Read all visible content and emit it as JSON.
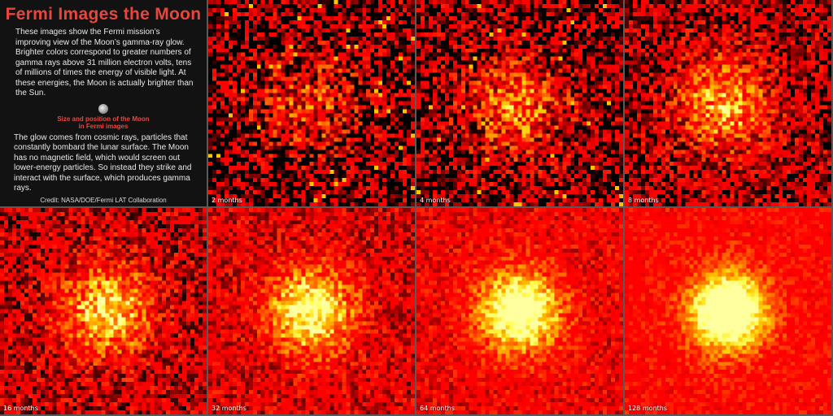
{
  "info": {
    "title": "Fermi Images the Moon",
    "paragraph1": "These images show the Fermi mission’s improving view of the Moon’s gamma-ray glow. Brighter colors correspond to greater numbers of gamma rays above 31 million electron volts, tens of millions of times the energy of visible light. At these energies, the Moon is actually brighter than the Sun.",
    "moon_caption_line1": "Size and position of the Moon",
    "moon_caption_line2": "in Fermi images",
    "paragraph2": "The glow comes from cosmic rays, particles that constantly bombard the lunar surface. The Moon has no magnetic field, which would screen out lower-energy particles. So instead they strike and interact with the surface, which produces gamma rays.",
    "credit": "Credit: NASA/DOE/Fermi LAT Collaboration"
  },
  "panels": [
    {
      "label": "2 months"
    },
    {
      "label": "4 months"
    },
    {
      "label": "8 months"
    },
    {
      "label": "16 months"
    },
    {
      "label": "32 months"
    },
    {
      "label": "64 months"
    },
    {
      "label": "128 months"
    }
  ],
  "colors": {
    "accent": "#e8463c",
    "background": "#121212",
    "divider": "#5a5a5a"
  }
}
